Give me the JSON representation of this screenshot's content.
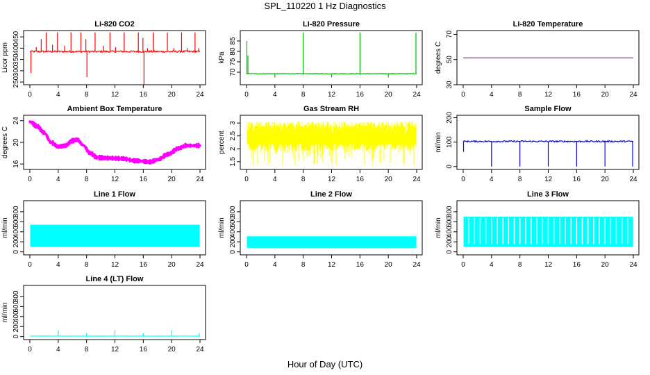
{
  "page": {
    "title": "SPL_110220  1 Hz Diagnostics",
    "xlabel": "Hour of Day (UTC)"
  },
  "chart_data": [
    {
      "type": "line",
      "title": "Li-820 CO2",
      "ylabel": "Licor ppm",
      "color": "#ff0000",
      "xlim": [
        0,
        24
      ],
      "ylim": [
        238,
        478
      ],
      "x_ticks": [
        0,
        4,
        8,
        12,
        16,
        20,
        24
      ],
      "y_ticks": [
        250,
        300,
        350,
        400,
        450
      ],
      "baseline": 385,
      "noise": 4,
      "spikes": [
        {
          "x": 0.15,
          "y": 290
        },
        {
          "x": 0.9,
          "y": 405
        },
        {
          "x": 1.6,
          "y": 440
        },
        {
          "x": 2.3,
          "y": 470
        },
        {
          "x": 3.2,
          "y": 415
        },
        {
          "x": 3.9,
          "y": 470
        },
        {
          "x": 4.9,
          "y": 410
        },
        {
          "x": 5.8,
          "y": 470
        },
        {
          "x": 7.2,
          "y": 470
        },
        {
          "x": 7.9,
          "y": 440
        },
        {
          "x": 8.05,
          "y": 272
        },
        {
          "x": 9.2,
          "y": 470
        },
        {
          "x": 10.4,
          "y": 410
        },
        {
          "x": 11.3,
          "y": 470
        },
        {
          "x": 12.1,
          "y": 405
        },
        {
          "x": 13.3,
          "y": 470
        },
        {
          "x": 15.3,
          "y": 470
        },
        {
          "x": 15.95,
          "y": 445
        },
        {
          "x": 16.1,
          "y": 240
        },
        {
          "x": 16.6,
          "y": 400
        },
        {
          "x": 17.4,
          "y": 470
        },
        {
          "x": 19.4,
          "y": 470
        },
        {
          "x": 20.3,
          "y": 400
        },
        {
          "x": 21.4,
          "y": 470
        },
        {
          "x": 22.2,
          "y": 400
        },
        {
          "x": 23.3,
          "y": 470
        },
        {
          "x": 23.8,
          "y": 400
        }
      ]
    },
    {
      "type": "line",
      "title": "Li-820 Pressure",
      "ylabel": "kPa",
      "color": "#00bb00",
      "xlim": [
        0,
        24
      ],
      "ylim": [
        64,
        90
      ],
      "x_ticks": [
        0,
        4,
        8,
        12,
        16,
        20,
        24
      ],
      "y_ticks": [
        70,
        75,
        80,
        85
      ],
      "baseline": 69.3,
      "noise": 0.15,
      "spikes": [
        {
          "x": 0.05,
          "y": 85
        },
        {
          "x": 0.2,
          "y": 78
        },
        {
          "x": 4.0,
          "y": 67.5
        },
        {
          "x": 8.0,
          "y": 89
        },
        {
          "x": 12.0,
          "y": 67.5
        },
        {
          "x": 16.0,
          "y": 89
        },
        {
          "x": 20.0,
          "y": 67.5
        },
        {
          "x": 23.9,
          "y": 89
        }
      ]
    },
    {
      "type": "line",
      "title": "Li-820 Temperature",
      "ylabel": "degrees C",
      "color": "#cc00cc",
      "xlim": [
        0,
        24
      ],
      "ylim": [
        30,
        73
      ],
      "x_ticks": [
        0,
        4,
        8,
        12,
        16,
        20,
        24
      ],
      "y_ticks": [
        30,
        50,
        70
      ],
      "baseline": 51.3,
      "noise": 0,
      "spikes": []
    },
    {
      "type": "line",
      "title": "Ambient Box Temperature",
      "ylabel": "degrees C",
      "color": "#ff00ff",
      "thick": true,
      "xlim": [
        0,
        24
      ],
      "ylim": [
        15,
        25
      ],
      "x_ticks": [
        0,
        4,
        8,
        12,
        16,
        20,
        24
      ],
      "y_ticks": [
        16,
        20,
        24
      ],
      "anchors": [
        [
          0,
          23.8
        ],
        [
          1,
          23.0
        ],
        [
          2,
          21.8
        ],
        [
          3,
          20.0
        ],
        [
          4,
          19.2
        ],
        [
          5,
          19.4
        ],
        [
          6,
          20.3
        ],
        [
          6.7,
          20.5
        ],
        [
          7.5,
          19.5
        ],
        [
          8.5,
          18.0
        ],
        [
          9.5,
          17.2
        ],
        [
          11,
          17.1
        ],
        [
          13,
          17.0
        ],
        [
          15,
          16.6
        ],
        [
          17,
          16.4
        ],
        [
          18,
          16.8
        ],
        [
          19.5,
          17.8
        ],
        [
          21,
          18.9
        ],
        [
          22,
          19.4
        ],
        [
          24,
          19.4
        ]
      ],
      "noise": 0.35,
      "spikes": []
    },
    {
      "type": "line",
      "title": "Gas Stream RH",
      "ylabel": "percent",
      "color": "#ffff00",
      "band": true,
      "xlim": [
        0,
        24
      ],
      "ylim": [
        1.2,
        3.3
      ],
      "x_ticks": [
        0,
        4,
        8,
        12,
        16,
        20,
        24
      ],
      "y_ticks": [
        1.5,
        2.0,
        2.5,
        3.0
      ],
      "band_top": 2.95,
      "band_bottom": 1.35,
      "band_floor": 2.2,
      "spikes": []
    },
    {
      "type": "line",
      "title": "Sample Flow",
      "ylabel": "ml/min",
      "color": "#0000ee",
      "xlim": [
        0,
        24
      ],
      "ylim": [
        -12,
        210
      ],
      "x_ticks": [
        0,
        4,
        8,
        12,
        16,
        20,
        24
      ],
      "y_ticks": [
        0,
        100,
        200
      ],
      "baseline": 103,
      "noise": 3,
      "spikes": [
        {
          "x": 0.05,
          "y": 60
        },
        {
          "x": 4.0,
          "y": 0
        },
        {
          "x": 8.0,
          "y": 0
        },
        {
          "x": 12.0,
          "y": 0
        },
        {
          "x": 16.0,
          "y": 0
        },
        {
          "x": 20.0,
          "y": 0
        },
        {
          "x": 23.9,
          "y": 0
        }
      ]
    },
    {
      "type": "line",
      "title": "Line 1 Flow",
      "ylabel": "ml/min",
      "color": "#00ffff",
      "band": true,
      "xlim": [
        0,
        24
      ],
      "ylim": [
        -60,
        1020
      ],
      "x_ticks": [
        0,
        4,
        8,
        12,
        16,
        20,
        24
      ],
      "y_ticks": [
        0,
        200,
        400,
        600,
        800
      ],
      "band_top": 540,
      "band_bottom": 100,
      "gaps": [
        4,
        8,
        12,
        16,
        20
      ],
      "spikes": []
    },
    {
      "type": "line",
      "title": "Line 2 Flow",
      "ylabel": "ml/min",
      "color": "#00ffff",
      "band": true,
      "xlim": [
        0,
        24
      ],
      "ylim": [
        -60,
        1020
      ],
      "x_ticks": [
        0,
        4,
        8,
        12,
        16,
        20,
        24
      ],
      "y_ticks": [
        0,
        200,
        400,
        600,
        800
      ],
      "band_top": 310,
      "band_bottom": 80,
      "gaps": [
        4,
        8,
        12,
        16,
        20
      ],
      "spikes": []
    },
    {
      "type": "line",
      "title": "Line 3 Flow",
      "ylabel": "ml/min",
      "color": "#00ffff",
      "band": true,
      "xlim": [
        0,
        24
      ],
      "ylim": [
        -60,
        1020
      ],
      "x_ticks": [
        0,
        4,
        8,
        12,
        16,
        20,
        24
      ],
      "y_ticks": [
        0,
        200,
        400,
        600,
        800
      ],
      "band_top": 700,
      "band_bottom": 100,
      "gaps": [
        0.8,
        1.6,
        2.4,
        3.2,
        4,
        4.8,
        5.6,
        6.4,
        7.2,
        8,
        8.8,
        9.6,
        10.4,
        11.2,
        12,
        12.8,
        13.6,
        14.4,
        15.2,
        16,
        16.8,
        17.6,
        18.4,
        19.2,
        20,
        20.8,
        21.6,
        22.4,
        23.2
      ],
      "spikes": []
    },
    {
      "type": "line",
      "title": "Line 4 (LT) Flow",
      "ylabel": "ml/min",
      "color": "#00ffff",
      "xlim": [
        0,
        24
      ],
      "ylim": [
        -60,
        1020
      ],
      "x_ticks": [
        0,
        4,
        8,
        12,
        16,
        20,
        24
      ],
      "y_ticks": [
        0,
        200,
        400,
        600,
        800
      ],
      "baseline": 10,
      "noise": 2,
      "spikes": [
        {
          "x": 4.0,
          "y": 130
        },
        {
          "x": 8.0,
          "y": 70
        },
        {
          "x": 12.0,
          "y": 130
        },
        {
          "x": 16.0,
          "y": 70
        },
        {
          "x": 20.0,
          "y": 130
        },
        {
          "x": 23.9,
          "y": 70
        }
      ]
    }
  ]
}
